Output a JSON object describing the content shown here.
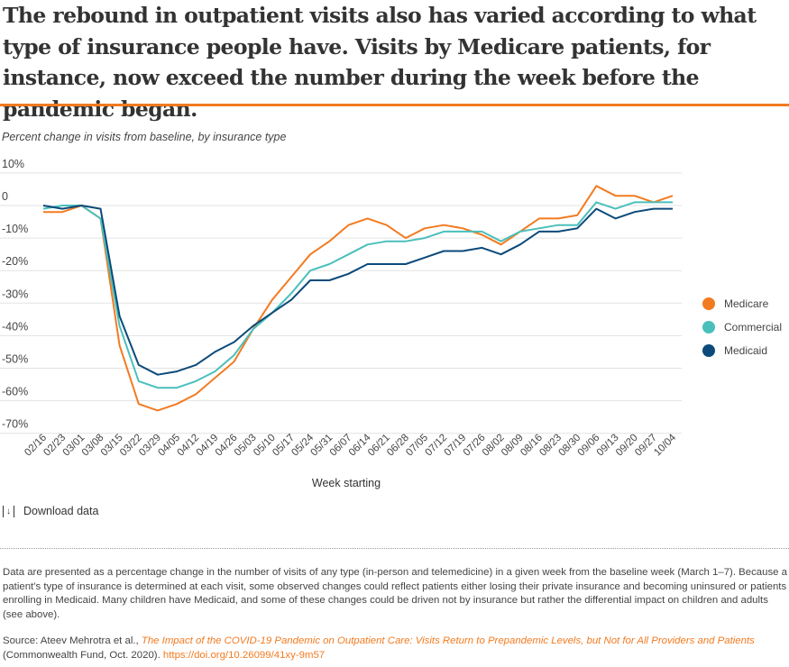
{
  "title": "The rebound in outpatient visits also has varied according to what type of insurance people have. Visits by Medicare patients, for instance, now exceed the number during the week before the pandemic began.",
  "download_label": "Download data",
  "notes": "Data are presented as a percentage change in the number of visits of any type (in-person and telemedicine) in a given week from the baseline week (March 1–7). Because a patient’s type of insurance is determined at each visit, some observed changes could reflect patients either losing their private insurance and becoming uninsured or patients enrolling in Medicaid. Many children have Medicaid, and some of these changes could be driven not by insurance but rather the differential impact on children and adults (see above).",
  "source": {
    "prefix": "Source: Ateev Mehrotra et al., ",
    "link_title": "The Impact of the COVID-19 Pandemic on Outpatient Care: Visits Return to Prepandemic Levels, but Not for All Providers and Patients",
    "middle": " (Commonwealth Fund, Oct. 2020). ",
    "doi": "https://doi.org/10.26099/41xy-9m57"
  },
  "chart_data": {
    "type": "line",
    "title": "Percent change in visits from baseline, by insurance type",
    "xlabel": "Week starting",
    "ylabel": "",
    "ylim": [
      -70,
      10
    ],
    "yticks": [
      10,
      0,
      -10,
      -20,
      -30,
      -40,
      -50,
      -60,
      -70
    ],
    "ytick_labels": [
      "10%",
      "0",
      "-10%",
      "-20%",
      "-30%",
      "-40%",
      "-50%",
      "-60%",
      "-70%"
    ],
    "grid": true,
    "legend_position": "right",
    "categories": [
      "02/16",
      "02/23",
      "03/01",
      "03/08",
      "03/15",
      "03/22",
      "03/29",
      "04/05",
      "04/12",
      "04/19",
      "04/26",
      "05/03",
      "05/10",
      "05/17",
      "05/24",
      "05/31",
      "06/07",
      "06/14",
      "06/21",
      "06/28",
      "07/05",
      "07/12",
      "07/19",
      "07/26",
      "08/02",
      "08/09",
      "08/16",
      "08/23",
      "08/30",
      "09/06",
      "09/13",
      "09/20",
      "09/27",
      "10/04"
    ],
    "series": [
      {
        "name": "Medicare",
        "color": "#f27b21",
        "values": [
          -2,
          -2,
          0,
          -4,
          -43,
          -61,
          -63,
          -61,
          -58,
          -53,
          -48,
          -38,
          -29,
          -22,
          -15,
          -11,
          -6,
          -4,
          -6,
          -10,
          -7,
          -6,
          -7,
          -9,
          -12,
          -8,
          -4,
          -4,
          -3,
          6,
          3,
          3,
          1,
          3
        ]
      },
      {
        "name": "Commercial",
        "color": "#4bbfbb",
        "values": [
          -1,
          0,
          0,
          -4,
          -37,
          -54,
          -56,
          -56,
          -54,
          -51,
          -46,
          -38,
          -33,
          -27,
          -20,
          -18,
          -15,
          -12,
          -11,
          -11,
          -10,
          -8,
          -8,
          -8,
          -11,
          -8,
          -7,
          -6,
          -6,
          1,
          -1,
          1,
          1,
          1
        ]
      },
      {
        "name": "Medicaid",
        "color": "#0b4a7a",
        "values": [
          0,
          -1,
          0,
          -1,
          -34,
          -49,
          -52,
          -51,
          -49,
          -45,
          -42,
          -37,
          -33,
          -29,
          -23,
          -23,
          -21,
          -18,
          -18,
          -18,
          -16,
          -14,
          -14,
          -13,
          -15,
          -12,
          -8,
          -8,
          -7,
          -1,
          -4,
          -2,
          -1,
          -1
        ]
      }
    ]
  }
}
